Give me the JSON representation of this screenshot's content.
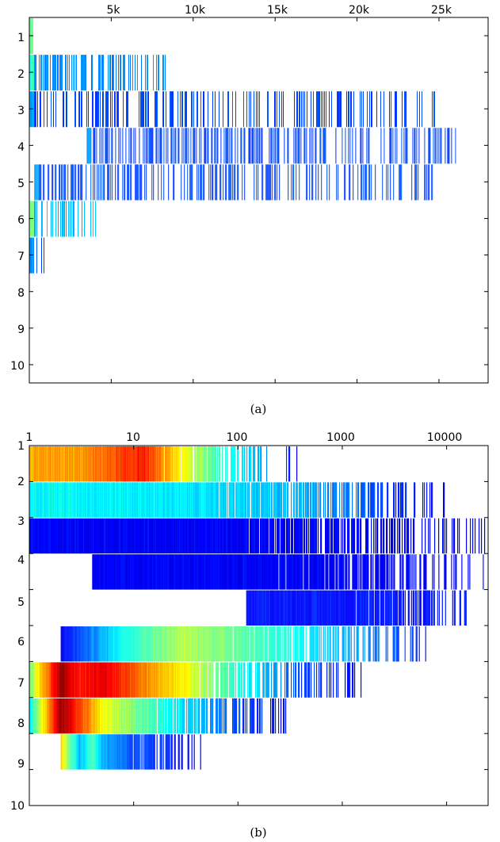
{
  "colors": {
    "axis": "#000000",
    "colormap": [
      "#00008f",
      "#0000ff",
      "#0080ff",
      "#00ffff",
      "#80ff80",
      "#ffff00",
      "#ff8000",
      "#ff0000",
      "#800000"
    ]
  },
  "chart_data": [
    {
      "id": "a",
      "caption": "(a)",
      "type": "heatmap",
      "title": "",
      "xlabel": "",
      "ylabel": "",
      "x_axis_position": "top",
      "x_scale": "linear",
      "xlim": [
        0,
        28000
      ],
      "x_ticks": [
        5000,
        10000,
        15000,
        20000,
        25000
      ],
      "x_tick_labels": [
        "5k",
        "10k",
        "15k",
        "20k",
        "25k"
      ],
      "y_categories": [
        "1",
        "2",
        "3",
        "4",
        "5",
        "6",
        "7",
        "8",
        "9",
        "10"
      ],
      "grid": false,
      "rows": [
        {
          "row": 1,
          "x_min": 1,
          "x_max": 200,
          "density": 1.0,
          "intensity": 0.35
        },
        {
          "row": 2,
          "x_min": 1,
          "x_max": 8400,
          "density": 0.55,
          "intensity": 0.3
        },
        {
          "row": 3,
          "x_min": 1,
          "x_max": 24800,
          "density": 0.35,
          "intensity": 0.15
        },
        {
          "row": 4,
          "x_min": 3500,
          "x_max": 26000,
          "density": 0.45,
          "intensity": 0.15
        },
        {
          "row": 5,
          "x_min": 300,
          "x_max": 24700,
          "density": 0.4,
          "intensity": 0.15
        },
        {
          "row": 6,
          "x_min": 1,
          "x_max": 4100,
          "density": 0.4,
          "intensity": 0.4
        },
        {
          "row": 7,
          "x_min": 1,
          "x_max": 1000,
          "density": 0.3,
          "intensity": 0.15
        },
        {
          "row": 8,
          "x_min": null,
          "x_max": null,
          "density": 0,
          "intensity": 0
        },
        {
          "row": 9,
          "x_min": null,
          "x_max": null,
          "density": 0,
          "intensity": 0
        },
        {
          "row": 10,
          "x_min": null,
          "x_max": null,
          "density": 0,
          "intensity": 0
        }
      ]
    },
    {
      "id": "b",
      "caption": "(b)",
      "type": "heatmap",
      "title": "",
      "xlabel": "",
      "ylabel": "",
      "x_axis_position": "top",
      "x_scale": "log",
      "xlim": [
        1,
        25000
      ],
      "x_ticks": [
        1,
        10,
        100,
        1000,
        10000
      ],
      "x_tick_labels": [
        "1",
        "10",
        "100",
        "1000",
        "10000"
      ],
      "y_categories": [
        "1",
        "2",
        "3",
        "4",
        "5",
        "6",
        "7",
        "8",
        "9",
        "10"
      ],
      "grid": false,
      "rows": [
        {
          "row": 1,
          "x_min": 1,
          "x_max": 390,
          "intensity_profile": [
            [
              1,
              0.7
            ],
            [
              3,
              0.72
            ],
            [
              6,
              0.78
            ],
            [
              12,
              0.85
            ],
            [
              25,
              0.65
            ],
            [
              60,
              0.45
            ],
            [
              150,
              0.3
            ],
            [
              390,
              0.12
            ]
          ]
        },
        {
          "row": 2,
          "x_min": 1,
          "x_max": 9500,
          "intensity_profile": [
            [
              1,
              0.38
            ],
            [
              50,
              0.35
            ],
            [
              400,
              0.3
            ],
            [
              2000,
              0.2
            ],
            [
              9500,
              0.12
            ]
          ]
        },
        {
          "row": 3,
          "x_min": 1,
          "x_max": 24000,
          "intensity_profile": [
            [
              1,
              0.12
            ],
            [
              1000,
              0.12
            ],
            [
              24000,
              0.12
            ]
          ]
        },
        {
          "row": 4,
          "x_min": 4,
          "x_max": 24000,
          "intensity_profile": [
            [
              4,
              0.12
            ],
            [
              24000,
              0.12
            ]
          ]
        },
        {
          "row": 5,
          "x_min": 120,
          "x_max": 19000,
          "intensity_profile": [
            [
              120,
              0.14
            ],
            [
              19000,
              0.14
            ]
          ]
        },
        {
          "row": 6,
          "x_min": 2,
          "x_max": 6500,
          "intensity_profile": [
            [
              2,
              0.12
            ],
            [
              4,
              0.25
            ],
            [
              8,
              0.4
            ],
            [
              30,
              0.55
            ],
            [
              150,
              0.45
            ],
            [
              1000,
              0.3
            ],
            [
              6500,
              0.15
            ]
          ]
        },
        {
          "row": 7,
          "x_min": 1,
          "x_max": 1700,
          "intensity_profile": [
            [
              1,
              0.5
            ],
            [
              2,
              0.97
            ],
            [
              3,
              0.85
            ],
            [
              5,
              0.9
            ],
            [
              10,
              0.78
            ],
            [
              30,
              0.62
            ],
            [
              100,
              0.4
            ],
            [
              400,
              0.2
            ],
            [
              1700,
              0.12
            ]
          ]
        },
        {
          "row": 8,
          "x_min": 1,
          "x_max": 300,
          "intensity_profile": [
            [
              1,
              0.38
            ],
            [
              2,
              0.97
            ],
            [
              3,
              0.82
            ],
            [
              5,
              0.62
            ],
            [
              10,
              0.5
            ],
            [
              30,
              0.35
            ],
            [
              100,
              0.2
            ],
            [
              300,
              0.12
            ]
          ]
        },
        {
          "row": 9,
          "x_min": 2,
          "x_max": 45,
          "intensity_profile": [
            [
              2,
              0.66
            ],
            [
              3,
              0.3
            ],
            [
              4,
              0.45
            ],
            [
              5,
              0.3
            ],
            [
              10,
              0.2
            ],
            [
              45,
              0.12
            ]
          ]
        },
        {
          "row": 10,
          "x_min": null,
          "x_max": null,
          "intensity_profile": []
        }
      ]
    }
  ]
}
